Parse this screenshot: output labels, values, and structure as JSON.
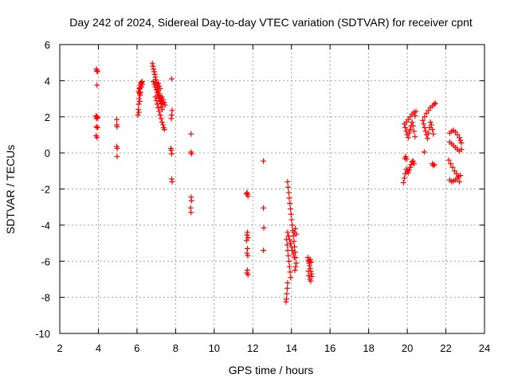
{
  "chart_data": {
    "type": "scatter",
    "title": "Day 242 of 2024, Sidereal Day-to-day VTEC variation (SDTVAR) for receiver cpnt",
    "xlabel": "GPS time / hours",
    "ylabel": "SDTVAR / TECUs",
    "xlim": [
      2,
      24
    ],
    "ylim": [
      -10,
      6
    ],
    "xticks": [
      2,
      4,
      6,
      8,
      10,
      12,
      14,
      16,
      18,
      20,
      22,
      24
    ],
    "yticks": [
      6,
      4,
      2,
      0,
      -2,
      -4,
      -6,
      -8,
      -10
    ],
    "grid": true,
    "marker": "+",
    "series": [
      {
        "name": "SDTVAR",
        "color": "#ff0000",
        "points": [
          [
            3.9,
            4.65
          ],
          [
            3.92,
            4.55
          ],
          [
            3.95,
            4.5
          ],
          [
            3.93,
            3.75
          ],
          [
            3.88,
            2.05
          ],
          [
            3.92,
            2.0
          ],
          [
            3.96,
            1.95
          ],
          [
            3.9,
            1.9
          ],
          [
            3.9,
            1.45
          ],
          [
            3.95,
            1.4
          ],
          [
            3.88,
            0.95
          ],
          [
            3.93,
            0.85
          ],
          [
            4.95,
            1.85
          ],
          [
            4.95,
            1.55
          ],
          [
            4.97,
            1.45
          ],
          [
            4.95,
            0.35
          ],
          [
            4.98,
            0.25
          ],
          [
            4.97,
            -0.2
          ],
          [
            6.05,
            2.1
          ],
          [
            6.07,
            2.4
          ],
          [
            6.09,
            2.7
          ],
          [
            6.11,
            3.0
          ],
          [
            6.13,
            3.3
          ],
          [
            6.15,
            3.55
          ],
          [
            6.17,
            3.75
          ],
          [
            6.2,
            3.85
          ],
          [
            6.23,
            3.9
          ],
          [
            6.26,
            3.95
          ],
          [
            6.1,
            2.25
          ],
          [
            6.14,
            2.85
          ],
          [
            6.18,
            3.35
          ],
          [
            6.22,
            3.65
          ],
          [
            6.28,
            3.8
          ],
          [
            6.08,
            3.4
          ],
          [
            6.12,
            3.6
          ],
          [
            6.16,
            3.2
          ],
          [
            6.8,
            4.95
          ],
          [
            6.83,
            4.8
          ],
          [
            6.86,
            4.65
          ],
          [
            6.89,
            4.5
          ],
          [
            6.92,
            4.35
          ],
          [
            6.95,
            4.2
          ],
          [
            6.98,
            4.05
          ],
          [
            7.01,
            3.9
          ],
          [
            7.04,
            3.75
          ],
          [
            7.07,
            3.6
          ],
          [
            7.1,
            3.45
          ],
          [
            7.13,
            3.3
          ],
          [
            7.16,
            3.15
          ],
          [
            7.19,
            3.0
          ],
          [
            7.22,
            2.85
          ],
          [
            7.25,
            2.7
          ],
          [
            7.28,
            2.55
          ],
          [
            7.31,
            2.4
          ],
          [
            6.85,
            3.95
          ],
          [
            6.9,
            3.8
          ],
          [
            6.95,
            3.65
          ],
          [
            7.0,
            3.5
          ],
          [
            7.05,
            3.35
          ],
          [
            7.1,
            3.2
          ],
          [
            7.15,
            3.05
          ],
          [
            7.2,
            2.9
          ],
          [
            7.25,
            2.75
          ],
          [
            6.95,
            3.1
          ],
          [
            7.0,
            2.9
          ],
          [
            7.05,
            2.7
          ],
          [
            7.1,
            2.5
          ],
          [
            7.15,
            2.3
          ],
          [
            7.2,
            2.1
          ],
          [
            7.25,
            1.9
          ],
          [
            7.3,
            1.7
          ],
          [
            7.35,
            1.55
          ],
          [
            7.38,
            1.4
          ],
          [
            7.42,
            1.3
          ],
          [
            7.3,
            3.1
          ],
          [
            7.35,
            2.95
          ],
          [
            7.4,
            2.8
          ],
          [
            7.45,
            2.65
          ],
          [
            7.1,
            3.85
          ],
          [
            7.15,
            3.7
          ],
          [
            7.2,
            3.55
          ],
          [
            7.8,
            4.1
          ],
          [
            7.82,
            2.35
          ],
          [
            7.8,
            2.1
          ],
          [
            7.78,
            1.9
          ],
          [
            7.75,
            0.25
          ],
          [
            7.78,
            0.15
          ],
          [
            7.8,
            -0.05
          ],
          [
            7.8,
            -1.45
          ],
          [
            7.82,
            -1.6
          ],
          [
            8.8,
            1.05
          ],
          [
            8.8,
            0.05
          ],
          [
            8.82,
            -0.05
          ],
          [
            8.8,
            -2.45
          ],
          [
            8.82,
            -2.65
          ],
          [
            8.78,
            -3.05
          ],
          [
            8.8,
            -3.3
          ],
          [
            11.7,
            -2.2
          ],
          [
            11.72,
            -2.3
          ],
          [
            11.75,
            -2.4
          ],
          [
            11.68,
            -2.25
          ],
          [
            11.72,
            -4.4
          ],
          [
            11.7,
            -4.55
          ],
          [
            11.75,
            -4.7
          ],
          [
            11.68,
            -4.85
          ],
          [
            11.72,
            -5.3
          ],
          [
            11.7,
            -5.55
          ],
          [
            11.74,
            -5.7
          ],
          [
            11.72,
            -6.5
          ],
          [
            11.7,
            -6.65
          ],
          [
            11.75,
            -6.75
          ],
          [
            12.55,
            -0.45
          ],
          [
            12.55,
            -3.05
          ],
          [
            12.57,
            -4.15
          ],
          [
            12.55,
            -5.4
          ],
          [
            13.8,
            -1.6
          ],
          [
            13.83,
            -1.9
          ],
          [
            13.86,
            -2.2
          ],
          [
            13.89,
            -2.5
          ],
          [
            13.92,
            -2.8
          ],
          [
            13.95,
            -3.1
          ],
          [
            13.98,
            -3.4
          ],
          [
            14.01,
            -3.7
          ],
          [
            14.04,
            -4.0
          ],
          [
            14.07,
            -4.3
          ],
          [
            14.1,
            -4.6
          ],
          [
            14.13,
            -4.9
          ],
          [
            14.16,
            -5.2
          ],
          [
            14.19,
            -5.5
          ],
          [
            14.22,
            -5.8
          ],
          [
            14.25,
            -6.1
          ],
          [
            13.8,
            -4.4
          ],
          [
            13.85,
            -4.6
          ],
          [
            13.9,
            -4.8
          ],
          [
            13.95,
            -5.0
          ],
          [
            14.0,
            -5.2
          ],
          [
            14.05,
            -5.4
          ],
          [
            14.1,
            -5.6
          ],
          [
            14.15,
            -5.8
          ],
          [
            13.75,
            -4.8
          ],
          [
            13.78,
            -5.1
          ],
          [
            13.81,
            -5.4
          ],
          [
            13.84,
            -5.7
          ],
          [
            13.87,
            -6.0
          ],
          [
            13.9,
            -6.3
          ],
          [
            13.93,
            -6.6
          ],
          [
            13.96,
            -6.9
          ],
          [
            13.8,
            -7.2
          ],
          [
            13.78,
            -7.5
          ],
          [
            13.76,
            -7.8
          ],
          [
            13.74,
            -8.1
          ],
          [
            13.72,
            -8.25
          ],
          [
            14.15,
            -4.4
          ],
          [
            14.2,
            -4.2
          ],
          [
            14.25,
            -4.5
          ],
          [
            14.18,
            -6.5
          ],
          [
            14.22,
            -6.3
          ],
          [
            14.85,
            -5.8
          ],
          [
            14.88,
            -5.95
          ],
          [
            14.91,
            -6.1
          ],
          [
            14.94,
            -6.25
          ],
          [
            14.97,
            -6.4
          ],
          [
            15.0,
            -6.55
          ],
          [
            15.03,
            -6.7
          ],
          [
            15.06,
            -6.85
          ],
          [
            14.9,
            -6.8
          ],
          [
            14.95,
            -7.0
          ],
          [
            15.0,
            -7.1
          ],
          [
            14.88,
            -6.55
          ],
          [
            14.92,
            -6.0
          ],
          [
            14.98,
            -5.9
          ],
          [
            15.02,
            -6.05
          ],
          [
            19.8,
            -1.65
          ],
          [
            19.85,
            -1.4
          ],
          [
            19.9,
            -1.15
          ],
          [
            19.95,
            -0.9
          ],
          [
            19.88,
            -0.3
          ],
          [
            19.92,
            -0.2
          ],
          [
            19.96,
            -0.35
          ],
          [
            20.0,
            -1.0
          ],
          [
            20.05,
            -1.1
          ],
          [
            20.1,
            -0.95
          ],
          [
            20.15,
            -0.8
          ],
          [
            20.2,
            -0.65
          ],
          [
            20.25,
            -0.5
          ],
          [
            20.3,
            -0.45
          ],
          [
            20.35,
            -0.6
          ],
          [
            19.85,
            1.6
          ],
          [
            19.9,
            1.4
          ],
          [
            19.95,
            1.2
          ],
          [
            20.0,
            1.0
          ],
          [
            20.05,
            0.85
          ],
          [
            20.1,
            1.1
          ],
          [
            20.15,
            1.3
          ],
          [
            20.2,
            1.5
          ],
          [
            20.25,
            1.7
          ],
          [
            20.3,
            1.5
          ],
          [
            20.35,
            1.2
          ],
          [
            20.4,
            0.9
          ],
          [
            19.95,
            1.7
          ],
          [
            20.05,
            1.85
          ],
          [
            20.15,
            2.0
          ],
          [
            20.25,
            2.15
          ],
          [
            20.35,
            2.25
          ],
          [
            20.45,
            2.3
          ],
          [
            20.4,
            2.05
          ],
          [
            20.8,
            1.8
          ],
          [
            20.85,
            1.6
          ],
          [
            20.9,
            1.4
          ],
          [
            20.95,
            1.2
          ],
          [
            21.0,
            1.0
          ],
          [
            21.05,
            0.8
          ],
          [
            21.1,
            1.1
          ],
          [
            21.15,
            1.4
          ],
          [
            21.2,
            1.7
          ],
          [
            21.25,
            1.55
          ],
          [
            21.3,
            1.3
          ],
          [
            21.35,
            1.05
          ],
          [
            20.9,
            2.0
          ],
          [
            21.0,
            2.2
          ],
          [
            21.1,
            2.35
          ],
          [
            21.2,
            2.5
          ],
          [
            21.3,
            2.6
          ],
          [
            21.4,
            2.7
          ],
          [
            21.45,
            2.75
          ],
          [
            20.88,
            0.05
          ],
          [
            21.3,
            -0.6
          ],
          [
            21.35,
            -0.7
          ],
          [
            21.4,
            -0.65
          ],
          [
            22.2,
            1.1
          ],
          [
            22.3,
            1.2
          ],
          [
            22.4,
            1.25
          ],
          [
            22.5,
            1.15
          ],
          [
            22.6,
            1.0
          ],
          [
            22.7,
            0.85
          ],
          [
            22.75,
            0.7
          ],
          [
            22.8,
            0.55
          ],
          [
            22.2,
            0.6
          ],
          [
            22.3,
            0.5
          ],
          [
            22.4,
            0.4
          ],
          [
            22.5,
            0.3
          ],
          [
            22.6,
            0.2
          ],
          [
            22.7,
            0.1
          ],
          [
            22.8,
            0.2
          ],
          [
            22.15,
            -0.4
          ],
          [
            22.25,
            -0.6
          ],
          [
            22.35,
            -0.8
          ],
          [
            22.45,
            -1.0
          ],
          [
            22.55,
            -1.15
          ],
          [
            22.65,
            -1.3
          ],
          [
            22.75,
            -1.25
          ],
          [
            22.2,
            -1.5
          ],
          [
            22.3,
            -1.6
          ],
          [
            22.4,
            -1.55
          ],
          [
            22.5,
            -1.5
          ],
          [
            22.6,
            -1.4
          ],
          [
            22.7,
            -1.6
          ]
        ]
      }
    ]
  }
}
